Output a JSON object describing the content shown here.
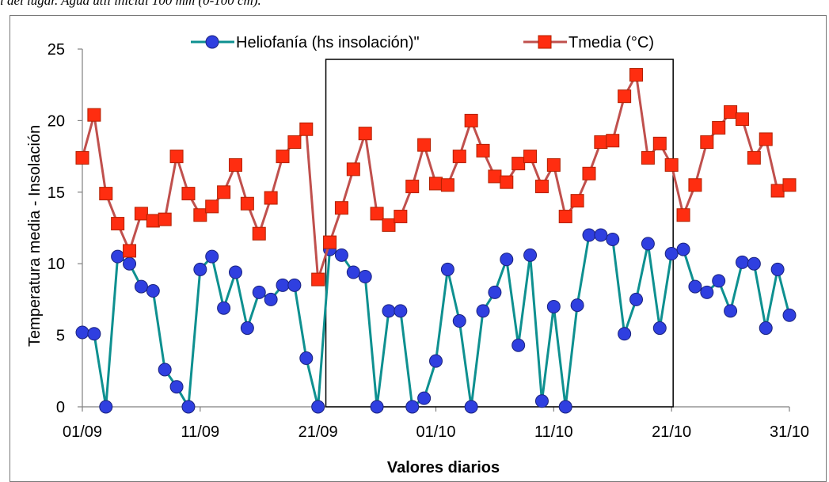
{
  "caption": "l del lugar. Agua útil inicial 100 mm (0-100 cm).",
  "chart_data": {
    "type": "line",
    "xlabel": "Valores diarios",
    "ylabel": "Temperatura media - Insolación",
    "x_tick_labels": [
      "01/09",
      "11/09",
      "21/09",
      "01/10",
      "11/10",
      "21/10",
      "31/10"
    ],
    "ylim": [
      0,
      25
    ],
    "y_ticks": [
      0,
      5,
      10,
      15,
      20,
      25
    ],
    "grid": false,
    "legend_position": "top",
    "highlight_box": {
      "x_from_day": 22,
      "x_to_day": 51
    },
    "series": [
      {
        "name": "Heliofanía (hs insolación)\"",
        "color": "#0e9090",
        "marker": "circle",
        "marker_color": "#2f3fe0",
        "values": [
          5.2,
          5.1,
          0,
          10.5,
          10,
          8.4,
          8.1,
          2.6,
          1.4,
          0,
          9.6,
          10.5,
          6.9,
          9.4,
          5.5,
          8,
          7.5,
          8.5,
          8.5,
          3.4,
          0,
          11,
          10.6,
          9.4,
          9.1,
          0,
          6.7,
          6.7,
          0,
          0.6,
          3.2,
          9.6,
          6,
          0,
          6.7,
          8,
          10.3,
          4.3,
          10.6,
          0.4,
          7,
          0,
          7.1,
          12,
          12,
          11.7,
          5.1,
          7.5,
          11.4,
          5.5,
          10.7,
          11,
          8.4,
          8,
          8.8,
          6.7,
          10.1,
          10,
          5.5,
          9.6,
          6.4
        ]
      },
      {
        "name": "Tmedia (°C)",
        "color": "#c0504d",
        "marker": "square",
        "marker_color": "#ff2d10",
        "values": [
          17.4,
          20.4,
          14.9,
          12.8,
          10.9,
          13.5,
          13,
          13.1,
          17.5,
          14.9,
          13.4,
          14,
          15,
          16.9,
          14.2,
          12.1,
          14.6,
          17.5,
          18.5,
          19.4,
          8.9,
          11.5,
          13.9,
          16.6,
          19.1,
          13.5,
          12.7,
          13.3,
          15.4,
          18.3,
          15.6,
          15.5,
          17.5,
          20,
          17.9,
          16.1,
          15.7,
          17,
          17.5,
          15.4,
          16.9,
          13.3,
          14.4,
          16.3,
          18.5,
          18.6,
          21.7,
          23.2,
          17.4,
          18.4,
          16.9,
          13.4,
          15.5,
          18.5,
          19.5,
          20.6,
          20.1,
          17.4,
          18.7,
          15.1,
          15.5
        ]
      }
    ]
  }
}
